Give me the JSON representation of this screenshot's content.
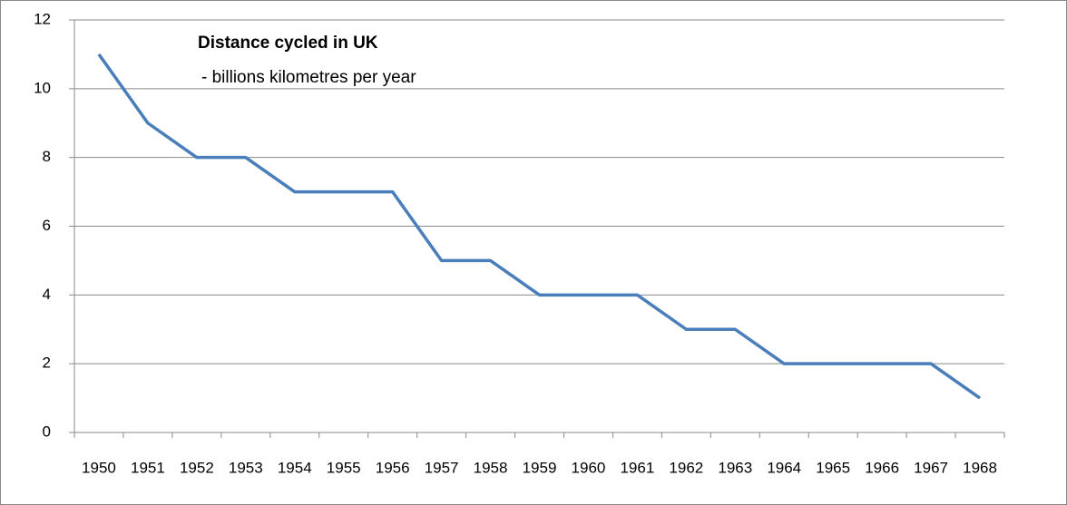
{
  "chart_data": {
    "type": "line",
    "title": "Distance cycled in UK",
    "subtitle": "- billions kilometres per year",
    "categories": [
      "1950",
      "1951",
      "1952",
      "1953",
      "1954",
      "1955",
      "1956",
      "1957",
      "1958",
      "1959",
      "1960",
      "1961",
      "1962",
      "1963",
      "1964",
      "1965",
      "1966",
      "1967",
      "1968"
    ],
    "values": [
      11,
      9,
      8,
      8,
      7,
      7,
      7,
      5,
      5,
      4,
      4,
      4,
      3,
      3,
      2,
      2,
      2,
      2,
      1
    ],
    "color": "#4a7ebb",
    "ylim": [
      0,
      12
    ],
    "yticks": [
      0,
      2,
      4,
      6,
      8,
      10,
      12
    ],
    "grid": true
  }
}
